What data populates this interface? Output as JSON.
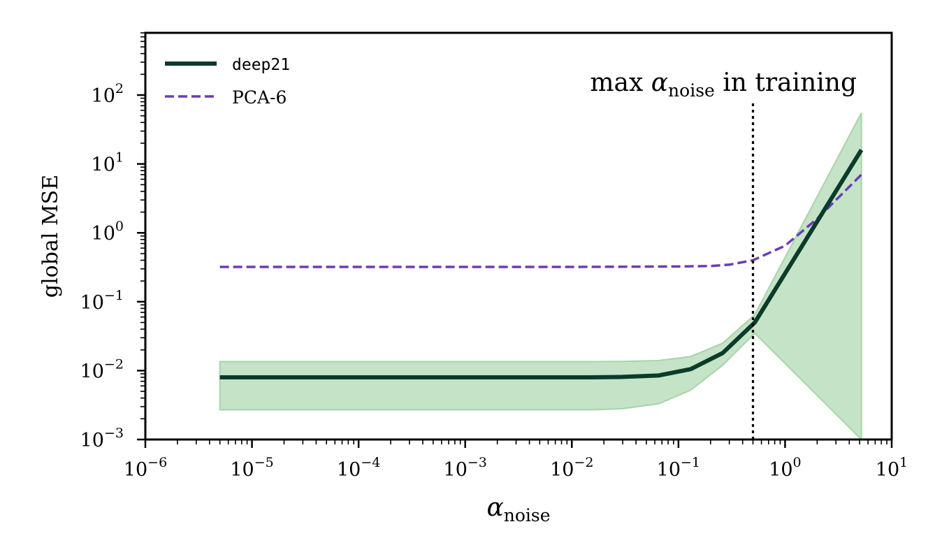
{
  "chart_data": {
    "type": "line",
    "xscale": "log",
    "yscale": "log",
    "xlim": [
      1e-06,
      10
    ],
    "ylim": [
      0.001,
      800
    ],
    "xlabel": "α",
    "xlabel_sub": "noise",
    "ylabel": "global MSE",
    "legend_position": "upper-left",
    "grid": false,
    "x_tick_labels": [
      "10",
      "10",
      "10",
      "10",
      "10",
      "10",
      "10",
      "10"
    ],
    "x_tick_exponents": [
      "−6",
      "−5",
      "−4",
      "−3",
      "−2",
      "−1",
      "0",
      "1"
    ],
    "x_ticks": [
      1e-06,
      1e-05,
      0.0001,
      0.001,
      0.01,
      0.1,
      1,
      10
    ],
    "y_tick_labels": [
      "10",
      "10",
      "10",
      "10",
      "10",
      "10"
    ],
    "y_tick_exponents": [
      "−3",
      "−2",
      "−1",
      "0",
      "1",
      "2"
    ],
    "y_ticks": [
      0.001,
      0.01,
      0.1,
      1,
      10,
      100
    ],
    "annotation": {
      "prefix": "max ",
      "symbol": "α",
      "sub": "noise",
      "suffix": " in training",
      "x": 0.5
    },
    "series": [
      {
        "name": "deep21",
        "color": "#0b3b2a",
        "style": "solid",
        "x": [
          5e-06,
          0.015,
          0.03,
          0.065,
          0.13,
          0.26,
          0.52,
          5.2
        ],
        "y": [
          0.008,
          0.008,
          0.0081,
          0.0085,
          0.0105,
          0.018,
          0.05,
          16
        ],
        "band_color": "#c5e3c6",
        "band_upper": [
          0.0135,
          0.0135,
          0.0136,
          0.014,
          0.016,
          0.025,
          0.065,
          55
        ],
        "band_lower": [
          0.0027,
          0.0027,
          0.0028,
          0.0033,
          0.0052,
          0.012,
          0.035,
          0.001
        ]
      },
      {
        "name": "PCA-6",
        "color": "#6a3db8",
        "style": "dashed",
        "x": [
          5e-06,
          0.01,
          0.1,
          0.2,
          0.3,
          0.5,
          1,
          2,
          5.2
        ],
        "y": [
          0.32,
          0.32,
          0.325,
          0.33,
          0.345,
          0.4,
          0.65,
          1.6,
          7
        ]
      }
    ]
  }
}
